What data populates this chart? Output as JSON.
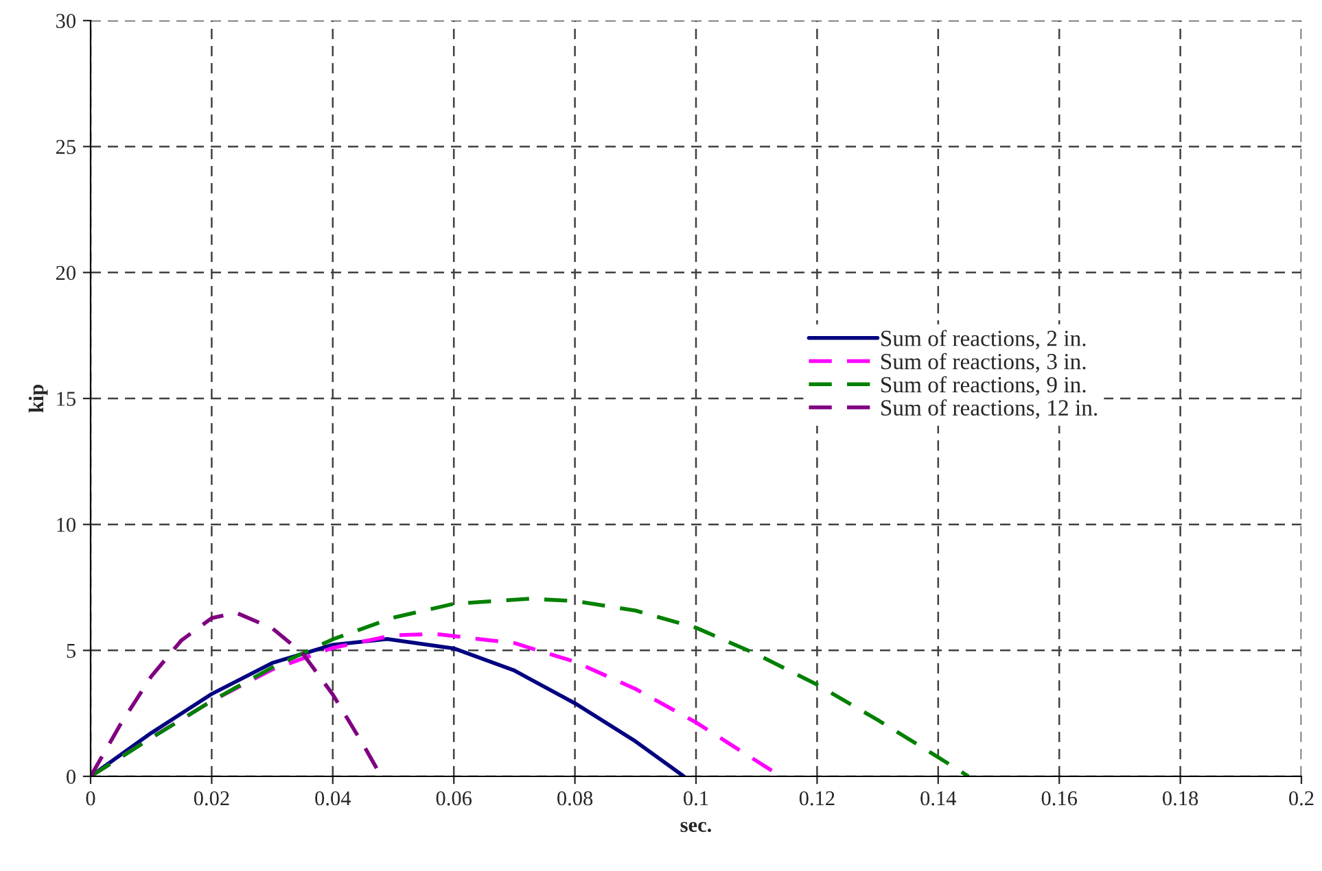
{
  "chart_data": {
    "type": "line",
    "xlabel": "sec.",
    "ylabel": "kip",
    "xlim": [
      0,
      0.2
    ],
    "ylim": [
      0,
      30
    ],
    "xticks": [
      0,
      0.02,
      0.04,
      0.06,
      0.08,
      0.1,
      0.12,
      0.14,
      0.16,
      0.18,
      0.2
    ],
    "yticks": [
      0,
      5,
      10,
      15,
      20,
      25,
      30
    ],
    "grid": true,
    "legend": "right",
    "marker": "none",
    "series": [
      {
        "name": "Sum of reactions, 2 in.",
        "color": "#000080",
        "line_style": "solid",
        "x": [
          0,
          0.01,
          0.02,
          0.03,
          0.04,
          0.049,
          0.06,
          0.07,
          0.08,
          0.09,
          0.098
        ],
        "values": [
          0,
          1.72,
          3.27,
          4.5,
          5.22,
          5.45,
          5.08,
          4.2,
          2.9,
          1.39,
          0
        ]
      },
      {
        "name": "Sum of reactions, 3 in.",
        "color": "#ff00ff",
        "line_style": "dashed",
        "x": [
          0,
          0.01,
          0.02,
          0.03,
          0.04,
          0.05,
          0.057,
          0.07,
          0.08,
          0.09,
          0.1,
          0.114
        ],
        "values": [
          0,
          1.53,
          2.99,
          4.24,
          5.1,
          5.6,
          5.65,
          5.29,
          4.55,
          3.47,
          2.14,
          0
        ]
      },
      {
        "name": "Sum of reactions, 9 in.",
        "color": "#008000",
        "line_style": "dashed",
        "x": [
          0,
          0.01,
          0.02,
          0.03,
          0.04,
          0.05,
          0.06,
          0.0725,
          0.08,
          0.09,
          0.1,
          0.11,
          0.12,
          0.13,
          0.14,
          0.145
        ],
        "values": [
          0,
          1.52,
          2.99,
          4.32,
          5.44,
          6.3,
          6.85,
          7.05,
          6.96,
          6.58,
          5.9,
          4.85,
          3.64,
          2.24,
          0.76,
          0
        ]
      },
      {
        "name": "Sum of reactions, 12 in.",
        "color": "#800080",
        "line_style": "dashed",
        "x": [
          0,
          0.005,
          0.01,
          0.015,
          0.02,
          0.024,
          0.03,
          0.035,
          0.04,
          0.045,
          0.048
        ],
        "values": [
          0,
          2.09,
          3.96,
          5.4,
          6.28,
          6.5,
          5.88,
          4.89,
          3.25,
          1.27,
          0
        ]
      }
    ]
  }
}
